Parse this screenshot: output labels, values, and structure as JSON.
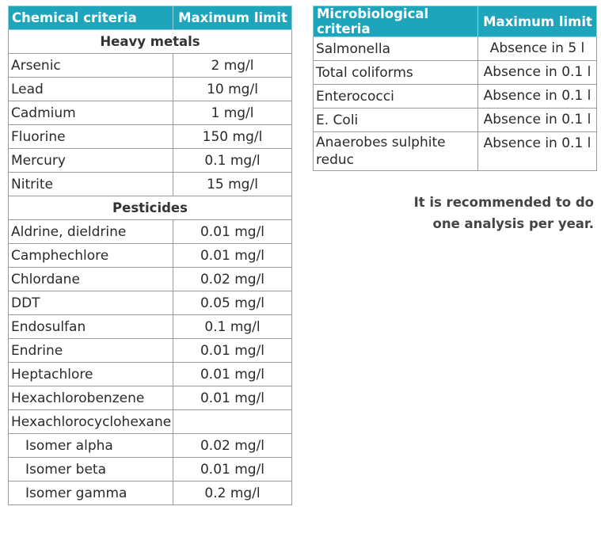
{
  "chemical": {
    "header": {
      "criteria": "Chemical criteria",
      "limit": "Maximum limit"
    },
    "sections": [
      {
        "title": "Heavy metals",
        "rows": [
          {
            "name": "Arsenic",
            "limit": "2 mg/l"
          },
          {
            "name": "Lead",
            "limit": "10 mg/l"
          },
          {
            "name": "Cadmium",
            "limit": "1 mg/l"
          },
          {
            "name": "Fluorine",
            "limit": "150 mg/l"
          },
          {
            "name": "Mercury",
            "limit": "0.1 mg/l"
          },
          {
            "name": "Nitrite",
            "limit": "15 mg/l"
          }
        ]
      },
      {
        "title": "Pesticides",
        "rows": [
          {
            "name": "Aldrine, dieldrine",
            "limit": "0.01 mg/l"
          },
          {
            "name": "Camphechlore",
            "limit": "0.01 mg/l"
          },
          {
            "name": "Chlordane",
            "limit": "0.02 mg/l"
          },
          {
            "name": "DDT",
            "limit": "0.05 mg/l"
          },
          {
            "name": "Endosulfan",
            "limit": "0.1 mg/l"
          },
          {
            "name": "Endrine",
            "limit": "0.01 mg/l"
          },
          {
            "name": "Heptachlore",
            "limit": "0.01 mg/l"
          },
          {
            "name": "Hexachlorobenzene",
            "limit": "0.01 mg/l"
          },
          {
            "name": "Hexachlorocyclohexane",
            "limit": ""
          },
          {
            "name": "Isomer alpha",
            "limit": "0.02 mg/l",
            "indent": true
          },
          {
            "name": "Isomer beta",
            "limit": "0.01 mg/l",
            "indent": true
          },
          {
            "name": "Isomer gamma",
            "limit": "0.2 mg/l",
            "indent": true
          }
        ]
      }
    ]
  },
  "microbiological": {
    "header": {
      "criteria": "Microbiological criteria",
      "limit": "Maximum limit"
    },
    "rows": [
      {
        "name": "Salmonella",
        "limit": "Absence in 5 l"
      },
      {
        "name": "Total coliforms",
        "limit": "Absence in 0.1 l"
      },
      {
        "name": "Enterococci",
        "limit": "Absence in 0.1 l"
      },
      {
        "name": "E. Coli",
        "limit": "Absence in 0.1 l"
      },
      {
        "name": "Anaerobes sulphite reduc",
        "limit": "Absence in 0.1 l",
        "multiline": true
      }
    ]
  },
  "note": {
    "line1": "It is recommended to do",
    "line2": "one analysis per year."
  },
  "colors": {
    "header_bg": "#1fa5bb",
    "header_text": "#ffffff",
    "border": "#9a9a9a"
  }
}
